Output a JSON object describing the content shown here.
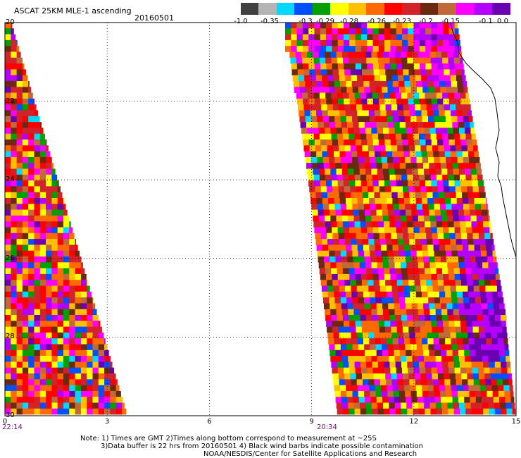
{
  "header": {
    "title": "ASCAT 25KM MLE-1 ascending",
    "date": "20160501"
  },
  "legend": {
    "labels": [
      "-1.0",
      "-0.35",
      "-0.3",
      "-0.29",
      "-0.28",
      "-0.26",
      "-0.23",
      "-0.2",
      "-0.15",
      "-0.1",
      "0.0"
    ],
    "colors": [
      "#404040",
      "#b4b4b4",
      "#00d8ff",
      "#0050ff",
      "#00a000",
      "#ffff00",
      "#ffc000",
      "#ff6a00",
      "#ff0000",
      "#d2232a",
      "#6b2a10",
      "#c06a3a",
      "#ff00ff",
      "#b400ff",
      "#6a00b0"
    ]
  },
  "axes": {
    "y_labels": [
      "20",
      "22",
      "24",
      "26",
      "28",
      "30"
    ],
    "x_labels": [
      "0",
      "3",
      "6",
      "9",
      "12",
      "15"
    ],
    "time_labels": [
      {
        "text": "22:14",
        "at_x": 0
      },
      {
        "text": "20:34",
        "at_x": 9
      }
    ]
  },
  "notes": {
    "line1": "Note: 1) Times are GMT 2)Times along bottom correspond to measurement at ~25S",
    "line2": "3)Data buffer is 22 hrs from 20160501 4) Black wind barbs indicate possible contamination",
    "line3": "NOAA/NESDIS/Center for Satellite Applications and Research"
  },
  "palette_colors": {
    "background": "#ffffff",
    "gridline": "#000000",
    "time_label": "#7a0a7a",
    "coastline": "#000000"
  }
}
